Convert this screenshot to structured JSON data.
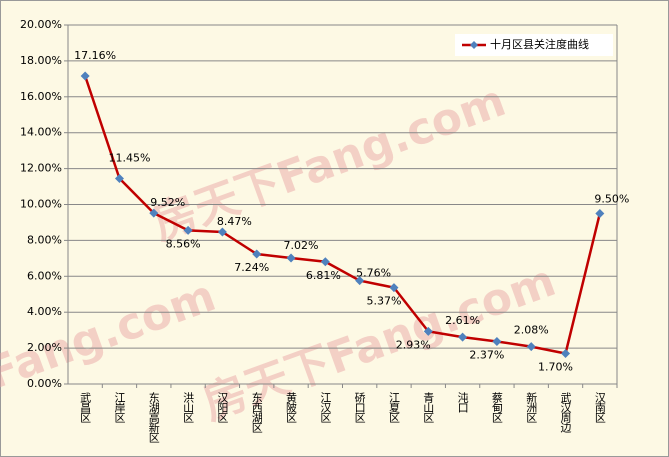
{
  "chart_data": {
    "type": "line",
    "categories": [
      "武昌区",
      "江岸区",
      "东湖高新区",
      "洪山区",
      "汉阳区",
      "东西湖区",
      "黄陂区",
      "江汉区",
      "硚口区",
      "江夏区",
      "青山区",
      "沌口",
      "蔡甸区",
      "新洲区",
      "武汉周边",
      "汉南区"
    ],
    "series": [
      {
        "name": "十月区县关注度曲线",
        "color": "#c00000",
        "marker_color": "#4f81bd",
        "values": [
          17.16,
          11.45,
          9.52,
          8.56,
          8.47,
          7.24,
          7.02,
          6.81,
          5.76,
          5.37,
          2.93,
          2.61,
          2.37,
          2.08,
          1.7,
          9.5
        ],
        "value_labels": [
          "17.16%",
          "11.45%",
          "9.52%",
          "8.56%",
          "8.47%",
          "7.24%",
          "7.02%",
          "6.81%",
          "5.76%",
          "5.37%",
          "2.93%",
          "2.61%",
          "2.37%",
          "2.08%",
          "1.70%",
          "9.50%"
        ]
      }
    ],
    "ylim": [
      0,
      20
    ],
    "yticks": [
      {
        "value": 0,
        "label": "0.00%"
      },
      {
        "value": 2,
        "label": "2.00%"
      },
      {
        "value": 4,
        "label": "4.00%"
      },
      {
        "value": 6,
        "label": "6.00%"
      },
      {
        "value": 8,
        "label": "8.00%"
      },
      {
        "value": 10,
        "label": "10.00%"
      },
      {
        "value": 12,
        "label": "12.00%"
      },
      {
        "value": 14,
        "label": "14.00%"
      },
      {
        "value": 16,
        "label": "16.00%"
      },
      {
        "value": 18,
        "label": "18.00%"
      },
      {
        "value": 20,
        "label": "20.00%"
      }
    ],
    "grid": true,
    "legend": "top-right",
    "watermark": "房天下Fang.com"
  }
}
